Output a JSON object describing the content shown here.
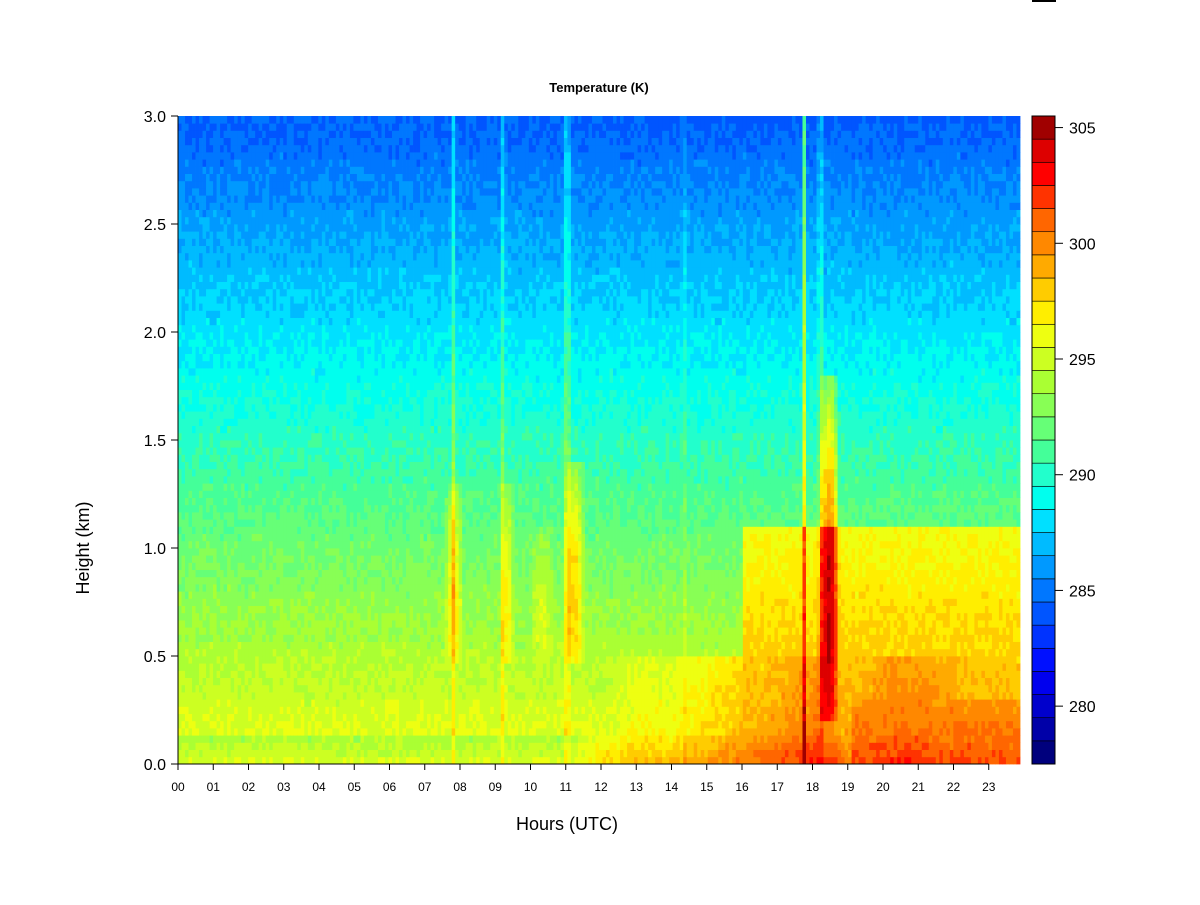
{
  "chart_data": {
    "type": "heatmap",
    "title": "Temperature (K)",
    "xlabel": "Hours (UTC)",
    "ylabel": "Height (km)",
    "x_ticks": [
      "00",
      "01",
      "02",
      "03",
      "04",
      "05",
      "06",
      "07",
      "08",
      "09",
      "10",
      "11",
      "12",
      "13",
      "14",
      "15",
      "16",
      "17",
      "18",
      "19",
      "20",
      "21",
      "22",
      "23"
    ],
    "x_range": [
      0,
      24
    ],
    "y_ticks": [
      "0.0",
      "0.5",
      "1.0",
      "1.5",
      "2.0",
      "2.5",
      "3.0"
    ],
    "y_range": [
      0,
      3
    ],
    "colorbar": {
      "min": 278,
      "max": 305,
      "step": 1,
      "tick_values": [
        280,
        285,
        290,
        295,
        300,
        305
      ],
      "tick_labels": [
        "280",
        "285",
        "290",
        "295",
        "300",
        "305"
      ],
      "colors": [
        "#00007d",
        "#0000a8",
        "#0000cc",
        "#0000ee",
        "#0010ff",
        "#0033ff",
        "#0055ff",
        "#0077ff",
        "#0099ff",
        "#00bbff",
        "#00e0ff",
        "#00ffee",
        "#22ffcc",
        "#44ff99",
        "#66ff77",
        "#88ff55",
        "#aaff33",
        "#ccff22",
        "#eeff11",
        "#ffee00",
        "#ffcc00",
        "#ffaa00",
        "#ff8800",
        "#ff6600",
        "#ff3300",
        "#ff0000",
        "#dd0000",
        "#a00000"
      ]
    },
    "surface_temp_K": [
      296,
      296,
      296,
      296,
      296,
      296,
      296,
      296,
      296,
      296,
      296,
      296,
      298,
      299,
      299,
      300,
      301,
      302,
      303,
      301,
      303,
      303,
      302,
      301
    ],
    "lapse_K_per_km": 4,
    "plumes": [
      {
        "hour": 7.8,
        "width_h": 0.25,
        "z_low_km": 0.45,
        "z_high_km": 1.3,
        "delta_K": 4
      },
      {
        "hour": 9.3,
        "width_h": 0.2,
        "z_low_km": 0.45,
        "z_high_km": 1.3,
        "delta_K": 3.5
      },
      {
        "hour": 10.3,
        "width_h": 0.35,
        "z_low_km": 0.5,
        "z_high_km": 1.1,
        "delta_K": 2
      },
      {
        "hour": 11.2,
        "width_h": 0.3,
        "z_low_km": 0.45,
        "z_high_km": 1.4,
        "delta_K": 5
      },
      {
        "hour": 18.4,
        "width_h": 0.3,
        "z_low_km": 0.2,
        "z_high_km": 1.8,
        "delta_K": 8
      }
    ],
    "streaks": [
      {
        "hour": 7.8,
        "width_h": 0.08,
        "delta_K": 4
      },
      {
        "hour": 9.2,
        "width_h": 0.08,
        "delta_K": 4
      },
      {
        "hour": 11.0,
        "width_h": 0.12,
        "delta_K": 4
      },
      {
        "hour": 14.3,
        "width_h": 0.06,
        "delta_K": 2
      },
      {
        "hour": 17.7,
        "width_h": 0.05,
        "delta_K": 7
      },
      {
        "hour": 18.15,
        "width_h": 0.06,
        "delta_K": 10
      }
    ],
    "grid": false,
    "legend_position": "right"
  }
}
